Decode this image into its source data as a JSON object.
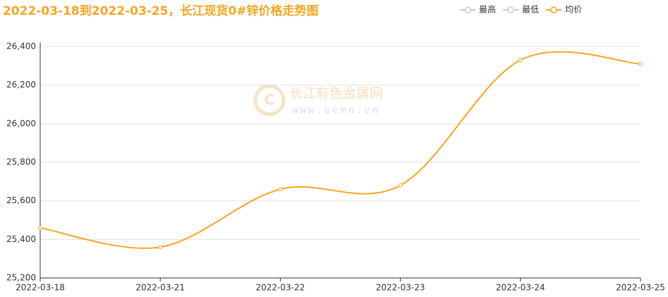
{
  "chart_data": {
    "type": "line",
    "title": "2022-03-18到2022-03-25，长江现货0#锌价格走势图",
    "watermark": {
      "name": "长江有色金属网",
      "url": "www.ccmn.cn"
    },
    "legend_hidden": [
      {
        "name": "最高",
        "color": "#cccccc"
      },
      {
        "name": "最低",
        "color": "#cccccc"
      }
    ],
    "categories": [
      "2022-03-18",
      "2022-03-21",
      "2022-03-22",
      "2022-03-23",
      "2022-03-24",
      "2022-03-25"
    ],
    "series": [
      {
        "name": "均价",
        "color": "#f5a623",
        "values": [
          25460,
          25360,
          25660,
          25680,
          26330,
          26310
        ]
      }
    ],
    "ylim": [
      25200,
      26400
    ],
    "yticks": [
      {
        "value": 25200,
        "label": "25,200"
      },
      {
        "value": 25400,
        "label": "25,400"
      },
      {
        "value": 25600,
        "label": "25,600"
      },
      {
        "value": 25800,
        "label": "25,800"
      },
      {
        "value": 26000,
        "label": "26,000"
      },
      {
        "value": 26200,
        "label": "26,200"
      },
      {
        "value": 26400,
        "label": "26,400"
      }
    ],
    "grid": true
  }
}
